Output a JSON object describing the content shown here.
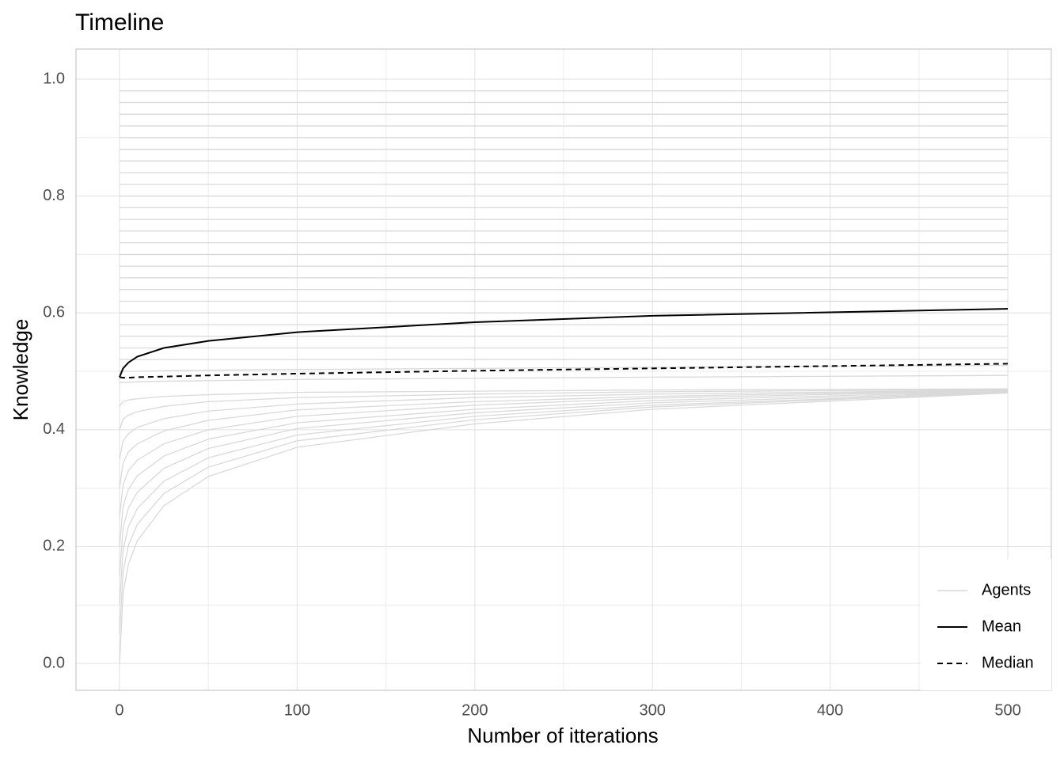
{
  "chart_data": {
    "type": "line",
    "title": "Timeline",
    "x_label": "Number of itterations",
    "y_label": "Knowledge",
    "x": [
      0,
      2,
      5,
      10,
      25,
      50,
      100,
      200,
      300,
      500
    ],
    "xlim": [
      -24.5,
      524.5
    ],
    "xticks": [
      0,
      100,
      200,
      300,
      400,
      500
    ],
    "ylim": [
      -0.046,
      1.0515
    ],
    "yticks": [
      {
        "value": 0,
        "label": "0.0"
      },
      {
        "value": 0.2,
        "label": "0.2"
      },
      {
        "value": 0.4,
        "label": "0.4"
      },
      {
        "value": 0.6,
        "label": "0.6"
      },
      {
        "value": 0.8,
        "label": "0.8"
      },
      {
        "value": 1,
        "label": "1.0"
      }
    ],
    "grid": true,
    "legend": "bottom-right",
    "series": [
      {
        "name": "Agents",
        "color": "#d9d9d9",
        "values": [
          [
            0.98,
            0.98,
            0.98,
            0.98,
            0.98,
            0.98,
            0.98,
            0.98,
            0.98,
            0.98
          ],
          [
            0.96,
            0.96,
            0.96,
            0.96,
            0.96,
            0.96,
            0.96,
            0.96,
            0.96,
            0.96
          ],
          [
            0.94,
            0.94,
            0.94,
            0.94,
            0.94,
            0.94,
            0.94,
            0.94,
            0.94,
            0.94
          ],
          [
            0.92,
            0.92,
            0.92,
            0.92,
            0.92,
            0.92,
            0.92,
            0.92,
            0.92,
            0.92
          ],
          [
            0.9,
            0.9,
            0.9,
            0.9,
            0.9,
            0.9,
            0.9,
            0.9,
            0.9,
            0.9
          ],
          [
            0.88,
            0.88,
            0.88,
            0.88,
            0.88,
            0.88,
            0.88,
            0.88,
            0.88,
            0.88
          ],
          [
            0.86,
            0.86,
            0.86,
            0.86,
            0.86,
            0.86,
            0.86,
            0.86,
            0.86,
            0.86
          ],
          [
            0.84,
            0.84,
            0.84,
            0.84,
            0.84,
            0.84,
            0.84,
            0.84,
            0.84,
            0.84
          ],
          [
            0.82,
            0.82,
            0.82,
            0.82,
            0.82,
            0.82,
            0.82,
            0.82,
            0.82,
            0.82
          ],
          [
            0.8,
            0.8,
            0.8,
            0.8,
            0.8,
            0.8,
            0.8,
            0.8,
            0.8,
            0.8
          ],
          [
            0.78,
            0.78,
            0.78,
            0.78,
            0.78,
            0.78,
            0.78,
            0.78,
            0.78,
            0.78
          ],
          [
            0.76,
            0.76,
            0.76,
            0.76,
            0.76,
            0.76,
            0.76,
            0.76,
            0.76,
            0.76
          ],
          [
            0.74,
            0.74,
            0.74,
            0.74,
            0.74,
            0.74,
            0.74,
            0.74,
            0.74,
            0.74
          ],
          [
            0.72,
            0.72,
            0.72,
            0.72,
            0.72,
            0.72,
            0.72,
            0.72,
            0.72,
            0.72
          ],
          [
            0.7,
            0.7,
            0.7,
            0.7,
            0.7,
            0.7,
            0.7,
            0.7,
            0.7,
            0.7
          ],
          [
            0.68,
            0.68,
            0.68,
            0.68,
            0.68,
            0.68,
            0.68,
            0.68,
            0.68,
            0.68
          ],
          [
            0.66,
            0.66,
            0.66,
            0.66,
            0.66,
            0.66,
            0.66,
            0.66,
            0.66,
            0.66
          ],
          [
            0.64,
            0.64,
            0.64,
            0.64,
            0.64,
            0.64,
            0.64,
            0.64,
            0.64,
            0.64
          ],
          [
            0.62,
            0.62,
            0.62,
            0.62,
            0.62,
            0.62,
            0.62,
            0.62,
            0.62,
            0.62
          ],
          [
            0.6,
            0.6,
            0.6,
            0.6,
            0.6,
            0.6,
            0.6,
            0.6,
            0.6,
            0.6
          ],
          [
            0.58,
            0.58,
            0.58,
            0.58,
            0.58,
            0.58,
            0.58,
            0.58,
            0.58,
            0.58
          ],
          [
            0.56,
            0.56,
            0.56,
            0.56,
            0.56,
            0.56,
            0.56,
            0.56,
            0.56,
            0.56
          ],
          [
            0.54,
            0.54,
            0.54,
            0.54,
            0.54,
            0.54,
            0.54,
            0.54,
            0.54,
            0.54
          ],
          [
            0.52,
            0.52,
            0.52,
            0.52,
            0.52,
            0.52,
            0.52,
            0.52,
            0.52,
            0.52
          ],
          [
            0.5,
            0.5,
            0.5,
            0.5,
            0.501,
            0.502,
            0.503,
            0.505,
            0.507,
            0.51
          ],
          [
            0.48,
            0.481,
            0.481,
            0.482,
            0.483,
            0.484,
            0.486,
            0.488,
            0.49,
            0.493
          ],
          [
            0.44,
            0.448,
            0.451,
            0.453,
            0.457,
            0.46,
            0.464,
            0.466,
            0.468,
            0.47
          ],
          [
            0.4,
            0.418,
            0.425,
            0.431,
            0.44,
            0.448,
            0.455,
            0.461,
            0.465,
            0.469
          ],
          [
            0.35,
            0.381,
            0.393,
            0.404,
            0.419,
            0.432,
            0.444,
            0.455,
            0.461,
            0.468
          ],
          [
            0.3,
            0.343,
            0.362,
            0.376,
            0.398,
            0.416,
            0.434,
            0.448,
            0.457,
            0.468
          ],
          [
            0.25,
            0.306,
            0.33,
            0.348,
            0.376,
            0.4,
            0.423,
            0.442,
            0.454,
            0.467
          ],
          [
            0.2,
            0.269,
            0.298,
            0.321,
            0.355,
            0.384,
            0.412,
            0.435,
            0.45,
            0.466
          ],
          [
            0.15,
            0.232,
            0.266,
            0.293,
            0.334,
            0.368,
            0.402,
            0.429,
            0.446,
            0.465
          ],
          [
            0.1,
            0.194,
            0.234,
            0.265,
            0.312,
            0.352,
            0.391,
            0.423,
            0.442,
            0.464
          ],
          [
            0.05,
            0.157,
            0.202,
            0.238,
            0.291,
            0.336,
            0.381,
            0.417,
            0.439,
            0.464
          ],
          [
            0,
            0.12,
            0.17,
            0.21,
            0.27,
            0.32,
            0.37,
            0.41,
            0.435,
            0.463
          ]
        ]
      },
      {
        "name": "Mean",
        "color": "#000000",
        "values": [
          0.49,
          0.505,
          0.515,
          0.525,
          0.54,
          0.552,
          0.567,
          0.584,
          0.595,
          0.607
        ]
      },
      {
        "name": "Median",
        "color": "#000000",
        "dashed": true,
        "values": [
          0.49,
          0.489,
          0.489,
          0.49,
          0.491,
          0.493,
          0.496,
          0.501,
          0.505,
          0.513
        ]
      }
    ]
  }
}
